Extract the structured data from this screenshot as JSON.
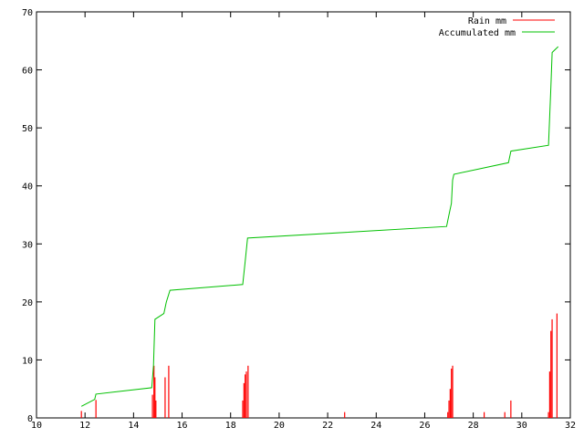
{
  "chart_data": {
    "type": "line",
    "title": "",
    "xlabel": "",
    "ylabel": "",
    "xlim": [
      10,
      32
    ],
    "ylim": [
      0,
      70
    ],
    "x_ticks": [
      10,
      12,
      14,
      16,
      18,
      20,
      22,
      24,
      26,
      28,
      30,
      32
    ],
    "y_ticks": [
      0,
      10,
      20,
      30,
      40,
      50,
      60,
      70
    ],
    "grid": false,
    "legend_position": "top-right",
    "series": [
      {
        "name": "Rain mm",
        "style": "impulses",
        "color": "#ff0000",
        "points": [
          [
            11.85,
            1.2
          ],
          [
            12.45,
            3.1
          ],
          [
            14.78,
            4.0
          ],
          [
            14.84,
            9.0
          ],
          [
            14.88,
            7.0
          ],
          [
            14.92,
            3.0
          ],
          [
            15.3,
            7.0
          ],
          [
            15.45,
            9.0
          ],
          [
            18.5,
            3.0
          ],
          [
            18.55,
            6.0
          ],
          [
            18.6,
            7.5
          ],
          [
            18.65,
            8.0
          ],
          [
            18.72,
            9.0
          ],
          [
            22.7,
            1.0
          ],
          [
            26.95,
            1.0
          ],
          [
            27.0,
            3.0
          ],
          [
            27.05,
            5.0
          ],
          [
            27.1,
            8.5
          ],
          [
            27.15,
            9.0
          ],
          [
            28.45,
            1.0
          ],
          [
            29.3,
            1.0
          ],
          [
            29.55,
            3.0
          ],
          [
            31.1,
            1.0
          ],
          [
            31.15,
            8.0
          ],
          [
            31.2,
            15.0
          ],
          [
            31.25,
            17.0
          ],
          [
            31.45,
            18.0
          ]
        ]
      },
      {
        "name": "Accumulated mm",
        "style": "line",
        "color": "#00c000",
        "points": [
          [
            11.85,
            2.0
          ],
          [
            12.4,
            3.2
          ],
          [
            12.45,
            4.1
          ],
          [
            14.75,
            5.2
          ],
          [
            14.82,
            9.0
          ],
          [
            14.88,
            17.0
          ],
          [
            15.25,
            18.0
          ],
          [
            15.35,
            20.0
          ],
          [
            15.5,
            22.0
          ],
          [
            18.5,
            23.0
          ],
          [
            18.6,
            27.0
          ],
          [
            18.7,
            31.0
          ],
          [
            26.9,
            33.0
          ],
          [
            27.0,
            35.0
          ],
          [
            27.1,
            37.0
          ],
          [
            27.15,
            41.0
          ],
          [
            27.2,
            42.0
          ],
          [
            29.45,
            44.0
          ],
          [
            29.55,
            46.0
          ],
          [
            31.1,
            47.0
          ],
          [
            31.2,
            57.0
          ],
          [
            31.25,
            63.0
          ],
          [
            31.5,
            64.0
          ]
        ]
      }
    ]
  }
}
